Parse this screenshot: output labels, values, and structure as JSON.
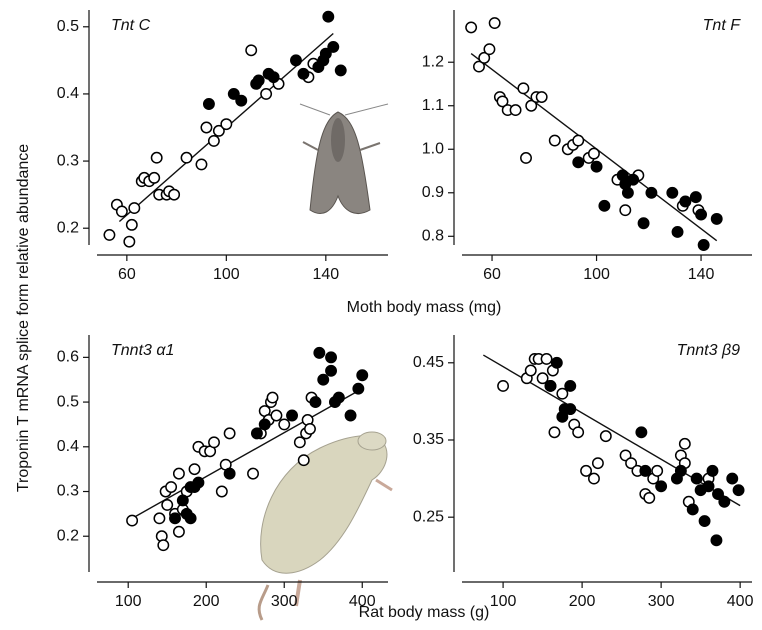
{
  "ylabel": "Troponin T mRNA splice form relative abundance",
  "chart_data": [
    {
      "type": "scatter",
      "title": "Tnt C",
      "title_corner": "left",
      "xlabel": "Moth body mass (mg)",
      "xlim": [
        48,
        165
      ],
      "ylim": [
        0.175,
        0.525
      ],
      "xticks": [
        60,
        100,
        140
      ],
      "yticks": [
        0.2,
        0.3,
        0.4,
        0.5
      ],
      "series": [
        {
          "marker": "open",
          "color": "#000000",
          "x": [
            53,
            56,
            58,
            61,
            62,
            63,
            66,
            67,
            69,
            71,
            72,
            73,
            76,
            77,
            79,
            84,
            90,
            92,
            95,
            97,
            100,
            110,
            116,
            121,
            133,
            135
          ],
          "values": [
            0.19,
            0.235,
            0.225,
            0.18,
            0.205,
            0.23,
            0.27,
            0.275,
            0.27,
            0.275,
            0.305,
            0.25,
            0.25,
            0.255,
            0.25,
            0.305,
            0.295,
            0.35,
            0.33,
            0.345,
            0.355,
            0.465,
            0.4,
            0.415,
            0.425,
            0.445
          ]
        },
        {
          "marker": "filled",
          "color": "#000000",
          "x": [
            93,
            103,
            106,
            112,
            113,
            117,
            119,
            128,
            131,
            137,
            139,
            140,
            141,
            143,
            146
          ],
          "values": [
            0.385,
            0.4,
            0.39,
            0.415,
            0.42,
            0.43,
            0.425,
            0.45,
            0.43,
            0.44,
            0.45,
            0.46,
            0.515,
            0.47,
            0.435
          ]
        }
      ],
      "trend": {
        "x": [
          57,
          143
        ],
        "values": [
          0.21,
          0.49
        ]
      }
    },
    {
      "type": "scatter",
      "title": "Tnt F",
      "title_corner": "right",
      "xlim": [
        48.5,
        159.5
      ],
      "ylim": [
        0.78,
        1.32
      ],
      "xticks": [
        60,
        100,
        140
      ],
      "yticks": [
        0.8,
        0.9,
        {
          "value": 1,
          "label": "1.0"
        },
        1.1,
        1.2
      ],
      "series": [
        {
          "marker": "open",
          "color": "#000000",
          "x": [
            52,
            55,
            57,
            59,
            61,
            63,
            64,
            66,
            69,
            72,
            73,
            75,
            77,
            79,
            84,
            89,
            91,
            93,
            97,
            99,
            108,
            111,
            116,
            133,
            139
          ],
          "values": [
            1.28,
            1.19,
            1.21,
            1.23,
            1.29,
            1.12,
            1.11,
            1.09,
            1.09,
            1.14,
            0.98,
            1.1,
            1.12,
            1.12,
            1.02,
            1.0,
            1.01,
            1.02,
            0.98,
            0.99,
            0.93,
            0.86,
            0.94,
            0.87,
            0.86
          ]
        },
        {
          "marker": "filled",
          "color": "#000000",
          "x": [
            93,
            100,
            103,
            110,
            111,
            112,
            114,
            118,
            121,
            129,
            131,
            134,
            138,
            140,
            141,
            146
          ],
          "values": [
            0.97,
            0.96,
            0.87,
            0.94,
            0.92,
            0.9,
            0.93,
            0.83,
            0.9,
            0.9,
            0.81,
            0.88,
            0.89,
            0.85,
            0.78,
            0.84
          ]
        }
      ],
      "trend": {
        "x": [
          52,
          146
        ],
        "values": [
          1.22,
          0.79
        ]
      }
    },
    {
      "type": "scatter",
      "title": "Tnnt3 α1",
      "title_corner": "left",
      "xlabel": "Rat body mass (g)",
      "xlim": [
        60,
        433
      ],
      "ylim": [
        0.12,
        0.65
      ],
      "xticks": [
        100,
        200,
        300,
        400
      ],
      "yticks": [
        0.2,
        0.3,
        0.4,
        0.5,
        0.6
      ],
      "series": [
        {
          "marker": "open",
          "color": "#000000",
          "x": [
            105,
            140,
            143,
            145,
            148,
            150,
            155,
            160,
            165,
            165,
            170,
            175,
            185,
            190,
            198,
            205,
            210,
            220,
            225,
            230,
            260,
            270,
            275,
            280,
            283,
            285,
            290,
            300,
            320,
            325,
            328,
            330,
            333,
            335
          ],
          "values": [
            0.235,
            0.24,
            0.2,
            0.18,
            0.3,
            0.27,
            0.31,
            0.25,
            0.21,
            0.34,
            0.26,
            0.3,
            0.35,
            0.4,
            0.39,
            0.39,
            0.41,
            0.3,
            0.36,
            0.43,
            0.34,
            0.43,
            0.48,
            0.46,
            0.5,
            0.51,
            0.47,
            0.45,
            0.41,
            0.37,
            0.43,
            0.46,
            0.44,
            0.51
          ]
        },
        {
          "marker": "filled",
          "color": "#000000",
          "x": [
            160,
            170,
            175,
            180,
            180,
            185,
            190,
            230,
            265,
            275,
            310,
            340,
            345,
            350,
            360,
            360,
            365,
            370,
            385,
            395,
            400
          ],
          "values": [
            0.24,
            0.28,
            0.25,
            0.31,
            0.24,
            0.31,
            0.32,
            0.34,
            0.43,
            0.45,
            0.47,
            0.5,
            0.61,
            0.55,
            0.6,
            0.57,
            0.5,
            0.51,
            0.47,
            0.53,
            0.56
          ]
        }
      ],
      "trend": {
        "x": [
          105,
          400
        ],
        "values": [
          0.24,
          0.53
        ]
      }
    },
    {
      "type": "scatter",
      "title": "Tnnt3 β9",
      "title_corner": "right",
      "xlim": [
        48,
        415
      ],
      "ylim": [
        0.179,
        0.486
      ],
      "xticks": [
        100,
        200,
        300,
        400
      ],
      "yticks": [
        0.25,
        0.35,
        0.45
      ],
      "series": [
        {
          "marker": "open",
          "color": "#000000",
          "x": [
            100,
            130,
            135,
            140,
            145,
            150,
            155,
            160,
            163,
            165,
            175,
            190,
            195,
            205,
            215,
            220,
            230,
            255,
            262,
            270,
            280,
            285,
            290,
            295,
            325,
            330,
            330,
            335,
            360
          ],
          "values": [
            0.42,
            0.43,
            0.44,
            0.455,
            0.455,
            0.43,
            0.455,
            0.42,
            0.44,
            0.36,
            0.41,
            0.37,
            0.36,
            0.31,
            0.3,
            0.32,
            0.355,
            0.33,
            0.32,
            0.31,
            0.28,
            0.275,
            0.3,
            0.31,
            0.33,
            0.345,
            0.32,
            0.27,
            0.3
          ]
        },
        {
          "marker": "filled",
          "color": "#000000",
          "x": [
            160,
            168,
            175,
            178,
            185,
            185,
            275,
            280,
            300,
            320,
            325,
            340,
            345,
            350,
            355,
            360,
            365,
            370,
            372,
            380,
            390,
            398
          ],
          "values": [
            0.42,
            0.45,
            0.38,
            0.39,
            0.39,
            0.42,
            0.36,
            0.31,
            0.29,
            0.3,
            0.31,
            0.26,
            0.3,
            0.285,
            0.245,
            0.29,
            0.31,
            0.22,
            0.28,
            0.27,
            0.3,
            0.285
          ]
        }
      ],
      "trend": {
        "x": [
          75,
          400
        ],
        "values": [
          0.46,
          0.265
        ]
      }
    }
  ]
}
